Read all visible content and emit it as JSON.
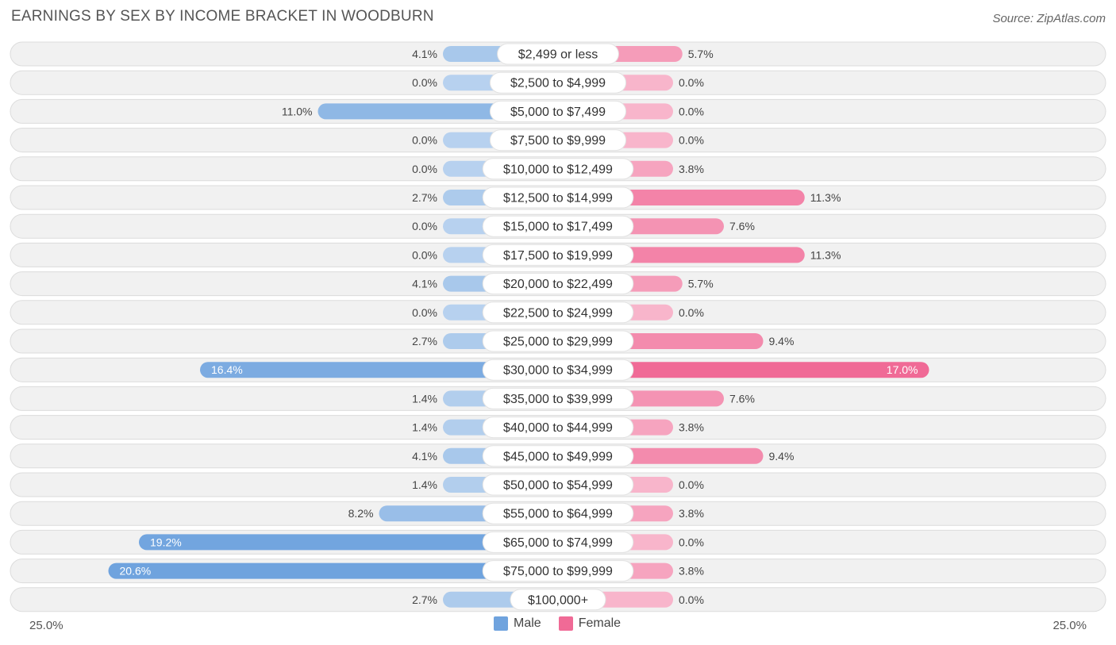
{
  "chart_data": {
    "type": "bar",
    "orientation": "horizontal-diverging",
    "title": "EARNINGS BY SEX BY INCOME BRACKET IN WOODBURN",
    "source": "Source: ZipAtlas.com",
    "categories": [
      "$2,499 or less",
      "$2,500 to $4,999",
      "$5,000 to $7,499",
      "$7,500 to $9,999",
      "$10,000 to $12,499",
      "$12,500 to $14,999",
      "$15,000 to $17,499",
      "$17,500 to $19,999",
      "$20,000 to $22,499",
      "$22,500 to $24,999",
      "$25,000 to $29,999",
      "$30,000 to $34,999",
      "$35,000 to $39,999",
      "$40,000 to $44,999",
      "$45,000 to $49,999",
      "$50,000 to $54,999",
      "$55,000 to $64,999",
      "$65,000 to $74,999",
      "$75,000 to $99,999",
      "$100,000+"
    ],
    "series": [
      {
        "name": "Male",
        "color": "#6fa3de",
        "values": [
          4.1,
          0.0,
          11.0,
          0.0,
          0.0,
          2.7,
          0.0,
          0.0,
          4.1,
          0.0,
          2.7,
          16.4,
          1.4,
          1.4,
          4.1,
          1.4,
          8.2,
          19.2,
          20.6,
          2.7
        ],
        "labels": [
          "4.1%",
          "0.0%",
          "11.0%",
          "0.0%",
          "0.0%",
          "2.7%",
          "0.0%",
          "0.0%",
          "4.1%",
          "0.0%",
          "2.7%",
          "16.4%",
          "1.4%",
          "1.4%",
          "4.1%",
          "1.4%",
          "8.2%",
          "19.2%",
          "20.6%",
          "2.7%"
        ]
      },
      {
        "name": "Female",
        "color": "#f06a96",
        "values": [
          5.7,
          0.0,
          0.0,
          0.0,
          3.8,
          11.3,
          7.6,
          11.3,
          5.7,
          0.0,
          9.4,
          17.0,
          7.6,
          3.8,
          9.4,
          0.0,
          3.8,
          0.0,
          3.8,
          0.0
        ],
        "labels": [
          "5.7%",
          "0.0%",
          "0.0%",
          "0.0%",
          "3.8%",
          "11.3%",
          "7.6%",
          "11.3%",
          "5.7%",
          "0.0%",
          "9.4%",
          "17.0%",
          "7.6%",
          "3.8%",
          "9.4%",
          "0.0%",
          "3.8%",
          "0.0%",
          "3.8%",
          "0.0%"
        ]
      }
    ],
    "xlim": [
      -25,
      25
    ],
    "axis_min_label": "25.0%",
    "axis_max_label": "25.0%",
    "legend": {
      "position": "bottom-center",
      "items": [
        "Male",
        "Female"
      ]
    }
  }
}
